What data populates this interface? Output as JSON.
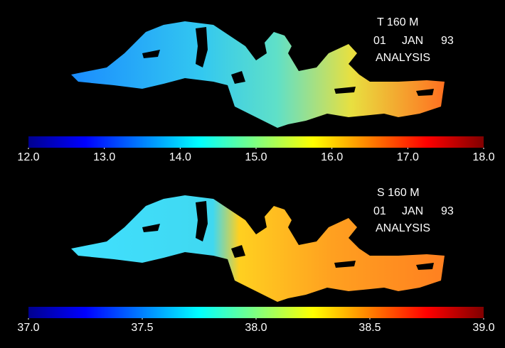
{
  "panels": [
    {
      "title": "T 160 M",
      "day": "01",
      "month": "JAN",
      "year": "93",
      "kind": "ANALYSIS",
      "clim": [
        12,
        18
      ],
      "ticks": [
        {
          "value": 12,
          "label": "12.0"
        },
        {
          "value": 13,
          "label": "13.0"
        },
        {
          "value": 14,
          "label": "14.0"
        },
        {
          "value": 15,
          "label": "15.0"
        },
        {
          "value": 16,
          "label": "16.0"
        },
        {
          "value": 17,
          "label": "17.0"
        },
        {
          "value": 18,
          "label": "18.0"
        }
      ]
    },
    {
      "title": "S 160 M",
      "day": "01",
      "month": "JAN",
      "year": "93",
      "kind": "ANALYSIS",
      "clim": [
        37,
        39
      ],
      "ticks": [
        {
          "value": 37,
          "label": "37.0"
        },
        {
          "value": 37.5,
          "label": "37.5"
        },
        {
          "value": 38,
          "label": "38.0"
        },
        {
          "value": 38.5,
          "label": "38.5"
        },
        {
          "value": 39,
          "label": "39.0"
        }
      ]
    }
  ]
}
